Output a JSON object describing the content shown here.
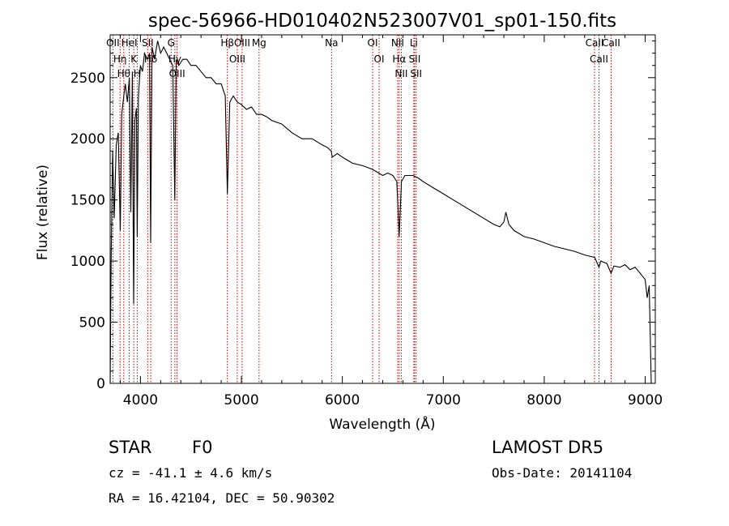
{
  "chart_data": {
    "type": "line",
    "title": "spec-56966-HD010402N523007V01_sp01-150.fits",
    "xlabel": "Wavelength (Å)",
    "ylabel": "Flux (relative)",
    "xlim": [
      3700,
      9100
    ],
    "ylim": [
      0,
      2850
    ],
    "xticks": [
      4000,
      5000,
      6000,
      7000,
      8000,
      9000
    ],
    "yticks": [
      0,
      500,
      1000,
      1500,
      2000,
      2500
    ],
    "grid": false,
    "line_color": "#000000",
    "marker_color": "#c00000",
    "series": [
      {
        "x": [
          3700,
          3710,
          3725,
          3740,
          3760,
          3780,
          3800,
          3815,
          3835,
          3850,
          3870,
          3890,
          3905,
          3920,
          3933,
          3945,
          3960,
          3968,
          3980,
          4000,
          4020,
          4040,
          4070,
          4090,
          4101,
          4115,
          4140,
          4170,
          4200,
          4230,
          4260,
          4290,
          4320,
          4340,
          4355,
          4380,
          4420,
          4460,
          4500,
          4550,
          4600,
          4650,
          4700,
          4750,
          4800,
          4840,
          4861,
          4885,
          4920,
          4960,
          5000,
          5050,
          5100,
          5150,
          5200,
          5250,
          5300,
          5400,
          5500,
          5600,
          5700,
          5800,
          5850,
          5890,
          5900,
          5950,
          6000,
          6100,
          6200,
          6300,
          6400,
          6450,
          6500,
          6540,
          6563,
          6585,
          6620,
          6700,
          6750,
          6800,
          6900,
          7000,
          7100,
          7200,
          7300,
          7400,
          7500,
          7560,
          7600,
          7620,
          7650,
          7700,
          7800,
          7900,
          8000,
          8100,
          8200,
          8300,
          8400,
          8500,
          8542,
          8560,
          8620,
          8662,
          8690,
          8750,
          8800,
          8850,
          8900,
          8950,
          9000,
          9020,
          9040,
          9060
        ],
        "y": [
          0,
          1000,
          1900,
          1350,
          1950,
          2050,
          1250,
          2200,
          2350,
          2450,
          2300,
          2500,
          1400,
          2550,
          650,
          2150,
          2250,
          1200,
          2350,
          2600,
          2550,
          2700,
          2650,
          2700,
          1150,
          2750,
          2650,
          2800,
          2700,
          2750,
          2700,
          2650,
          2600,
          1500,
          2650,
          2600,
          2650,
          2650,
          2600,
          2600,
          2550,
          2500,
          2500,
          2450,
          2450,
          2350,
          1550,
          2300,
          2350,
          2300,
          2280,
          2240,
          2260,
          2200,
          2200,
          2180,
          2150,
          2120,
          2050,
          2000,
          2000,
          1950,
          1930,
          1900,
          1850,
          1880,
          1850,
          1800,
          1780,
          1750,
          1700,
          1720,
          1700,
          1650,
          1200,
          1650,
          1700,
          1700,
          1680,
          1650,
          1600,
          1550,
          1500,
          1450,
          1400,
          1350,
          1300,
          1280,
          1320,
          1400,
          1300,
          1250,
          1200,
          1180,
          1150,
          1120,
          1100,
          1080,
          1050,
          1030,
          950,
          1000,
          980,
          900,
          960,
          950,
          970,
          930,
          950,
          900,
          850,
          700,
          800,
          0
        ]
      }
    ],
    "spectral_lines": [
      {
        "wavelength": 3727,
        "label": "OII"
      },
      {
        "wavelength": 3798,
        "label": "Hη"
      },
      {
        "wavelength": 3835,
        "label": "Hθ"
      },
      {
        "wavelength": 3889,
        "label": "HeI"
      },
      {
        "wavelength": 3934,
        "label": "K"
      },
      {
        "wavelength": 3968,
        "label": "H"
      },
      {
        "wavelength": 4072,
        "label": "SII"
      },
      {
        "wavelength": 4102,
        "label": "Hδ"
      },
      {
        "wavelength": 4304,
        "label": "G"
      },
      {
        "wavelength": 4341,
        "label": "Hγ"
      },
      {
        "wavelength": 4363,
        "label": "OIII"
      },
      {
        "wavelength": 4861,
        "label": "Hβ"
      },
      {
        "wavelength": 4959,
        "label": "OIII"
      },
      {
        "wavelength": 5007,
        "label": "OIII"
      },
      {
        "wavelength": 5175,
        "label": "Mg"
      },
      {
        "wavelength": 5893,
        "label": "Na"
      },
      {
        "wavelength": 6300,
        "label": "OI"
      },
      {
        "wavelength": 6364,
        "label": "OI"
      },
      {
        "wavelength": 6548,
        "label": "NII"
      },
      {
        "wavelength": 6563,
        "label": "Hα"
      },
      {
        "wavelength": 6584,
        "label": "NII"
      },
      {
        "wavelength": 6708,
        "label": "Li"
      },
      {
        "wavelength": 6716,
        "label": "SII"
      },
      {
        "wavelength": 6731,
        "label": "SII"
      },
      {
        "wavelength": 8498,
        "label": "CaII"
      },
      {
        "wavelength": 8542,
        "label": "CaII"
      },
      {
        "wavelength": 8662,
        "label": "CaII"
      }
    ]
  },
  "info": {
    "object_class": "STAR",
    "subclass": "F0",
    "survey": "LAMOST DR5",
    "cz": "cz = -41.1 ± 4.6 km/s",
    "obs_date": "Obs-Date: 20141104",
    "radec": "RA =  16.42104, DEC =  50.90302"
  }
}
